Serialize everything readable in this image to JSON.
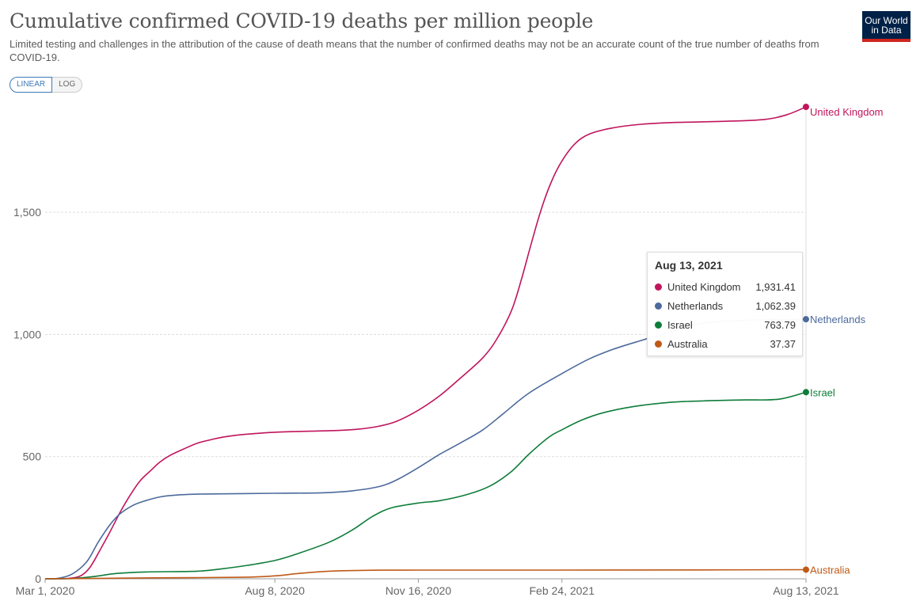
{
  "title": "Cumulative confirmed COVID-19 deaths per million people",
  "subtitle": "Limited testing and challenges in the attribution of the cause of death means that the number of confirmed deaths may not be an accurate count of the true number of deaths from COVID-19.",
  "logo": {
    "line1": "Our World",
    "line2": "in Data"
  },
  "scale_toggle": {
    "linear": "LINEAR",
    "log": "LOG",
    "selected": "LINEAR"
  },
  "tooltip": {
    "date": "Aug 13, 2021",
    "rows": [
      {
        "name": "United Kingdom",
        "value": "1,931.41",
        "color": "#c0155c"
      },
      {
        "name": "Netherlands",
        "value": "1,062.39",
        "color": "#4c6a9c"
      },
      {
        "name": "Israel",
        "value": "763.79",
        "color": "#0e7d3a"
      },
      {
        "name": "Australia",
        "value": "37.37",
        "color": "#c05917"
      }
    ]
  },
  "chart_data": {
    "type": "line",
    "title": "Cumulative confirmed COVID-19 deaths per million people",
    "x_axis": {
      "type": "date",
      "start": "2020-03-01",
      "end": "2021-08-13",
      "tick_labels": [
        "Mar 1, 2020",
        "Aug 8, 2020",
        "Nov 16, 2020",
        "Feb 24, 2021",
        "Aug 13, 2021"
      ],
      "tick_dates": [
        "2020-03-01",
        "2020-08-08",
        "2020-11-16",
        "2021-02-24",
        "2021-08-13"
      ]
    },
    "y_axis": {
      "ylim": [
        0,
        1931.41
      ],
      "ticks": [
        0,
        500,
        1000,
        1500
      ],
      "tick_labels": [
        "0",
        "500",
        "1,000",
        "1,500"
      ],
      "grid": true
    },
    "series": [
      {
        "name": "United Kingdom",
        "color": "#c0155c",
        "points": [
          [
            "2020-03-01",
            0
          ],
          [
            "2020-03-15",
            1
          ],
          [
            "2020-03-25",
            10
          ],
          [
            "2020-04-01",
            45
          ],
          [
            "2020-04-08",
            115
          ],
          [
            "2020-04-15",
            190
          ],
          [
            "2020-04-22",
            270
          ],
          [
            "2020-04-29",
            340
          ],
          [
            "2020-05-06",
            400
          ],
          [
            "2020-05-13",
            440
          ],
          [
            "2020-05-20",
            478
          ],
          [
            "2020-05-27",
            505
          ],
          [
            "2020-06-05",
            530
          ],
          [
            "2020-06-15",
            555
          ],
          [
            "2020-06-25",
            570
          ],
          [
            "2020-07-05",
            582
          ],
          [
            "2020-07-20",
            592
          ],
          [
            "2020-08-08",
            600
          ],
          [
            "2020-09-01",
            604
          ],
          [
            "2020-09-20",
            607
          ],
          [
            "2020-10-05",
            612
          ],
          [
            "2020-10-20",
            625
          ],
          [
            "2020-11-01",
            645
          ],
          [
            "2020-11-16",
            690
          ],
          [
            "2020-12-01",
            750
          ],
          [
            "2020-12-15",
            820
          ],
          [
            "2020-12-31",
            905
          ],
          [
            "2021-01-10",
            985
          ],
          [
            "2021-01-20",
            1100
          ],
          [
            "2021-01-27",
            1230
          ],
          [
            "2021-02-03",
            1380
          ],
          [
            "2021-02-10",
            1520
          ],
          [
            "2021-02-17",
            1630
          ],
          [
            "2021-02-24",
            1710
          ],
          [
            "2021-03-05",
            1780
          ],
          [
            "2021-03-15",
            1820
          ],
          [
            "2021-03-31",
            1845
          ],
          [
            "2021-04-20",
            1860
          ],
          [
            "2021-05-15",
            1868
          ],
          [
            "2021-06-15",
            1872
          ],
          [
            "2021-07-15",
            1880
          ],
          [
            "2021-07-31",
            1900
          ],
          [
            "2021-08-13",
            1931.41
          ]
        ]
      },
      {
        "name": "Netherlands",
        "color": "#4c6a9c",
        "points": [
          [
            "2020-03-01",
            0
          ],
          [
            "2020-03-10",
            2
          ],
          [
            "2020-03-20",
            20
          ],
          [
            "2020-03-30",
            70
          ],
          [
            "2020-04-07",
            150
          ],
          [
            "2020-04-15",
            220
          ],
          [
            "2020-04-22",
            265
          ],
          [
            "2020-05-01",
            300
          ],
          [
            "2020-05-10",
            320
          ],
          [
            "2020-05-20",
            335
          ],
          [
            "2020-06-01",
            343
          ],
          [
            "2020-06-20",
            347
          ],
          [
            "2020-08-08",
            350
          ],
          [
            "2020-09-10",
            352
          ],
          [
            "2020-10-01",
            360
          ],
          [
            "2020-10-20",
            378
          ],
          [
            "2020-11-01",
            405
          ],
          [
            "2020-11-16",
            455
          ],
          [
            "2020-12-01",
            510
          ],
          [
            "2020-12-15",
            555
          ],
          [
            "2020-12-31",
            610
          ],
          [
            "2021-01-15",
            680
          ],
          [
            "2021-02-01",
            760
          ],
          [
            "2021-02-24",
            840
          ],
          [
            "2021-03-15",
            900
          ],
          [
            "2021-04-01",
            940
          ],
          [
            "2021-04-20",
            975
          ],
          [
            "2021-05-10",
            1010
          ],
          [
            "2021-06-01",
            1045
          ],
          [
            "2021-07-01",
            1058
          ],
          [
            "2021-08-13",
            1062.39
          ]
        ]
      },
      {
        "name": "Israel",
        "color": "#0e7d3a",
        "points": [
          [
            "2020-03-01",
            0
          ],
          [
            "2020-03-20",
            1
          ],
          [
            "2020-04-05",
            10
          ],
          [
            "2020-04-20",
            22
          ],
          [
            "2020-05-10",
            28
          ],
          [
            "2020-06-15",
            31
          ],
          [
            "2020-07-01",
            40
          ],
          [
            "2020-07-20",
            55
          ],
          [
            "2020-08-08",
            75
          ],
          [
            "2020-08-25",
            105
          ],
          [
            "2020-09-15",
            150
          ],
          [
            "2020-10-01",
            200
          ],
          [
            "2020-10-15",
            255
          ],
          [
            "2020-10-28",
            290
          ],
          [
            "2020-11-16",
            310
          ],
          [
            "2020-12-01",
            320
          ],
          [
            "2020-12-20",
            345
          ],
          [
            "2021-01-05",
            380
          ],
          [
            "2021-01-20",
            440
          ],
          [
            "2021-02-01",
            510
          ],
          [
            "2021-02-15",
            580
          ],
          [
            "2021-02-24",
            610
          ],
          [
            "2021-03-10",
            650
          ],
          [
            "2021-03-25",
            680
          ],
          [
            "2021-04-15",
            705
          ],
          [
            "2021-05-10",
            722
          ],
          [
            "2021-06-01",
            728
          ],
          [
            "2021-07-01",
            732
          ],
          [
            "2021-07-25",
            735
          ],
          [
            "2021-08-13",
            763.79
          ]
        ]
      },
      {
        "name": "Australia",
        "color": "#c05917",
        "points": [
          [
            "2020-03-01",
            0
          ],
          [
            "2020-04-10",
            2
          ],
          [
            "2020-05-15",
            4
          ],
          [
            "2020-07-15",
            6
          ],
          [
            "2020-08-08",
            12
          ],
          [
            "2020-08-25",
            22
          ],
          [
            "2020-09-15",
            31
          ],
          [
            "2020-10-15",
            35
          ],
          [
            "2020-11-16",
            35.5
          ],
          [
            "2021-02-24",
            35.8
          ],
          [
            "2021-06-01",
            36.2
          ],
          [
            "2021-08-13",
            37.37
          ]
        ]
      }
    ],
    "end_labels": [
      "United Kingdom",
      "Netherlands",
      "Israel",
      "Australia"
    ]
  }
}
